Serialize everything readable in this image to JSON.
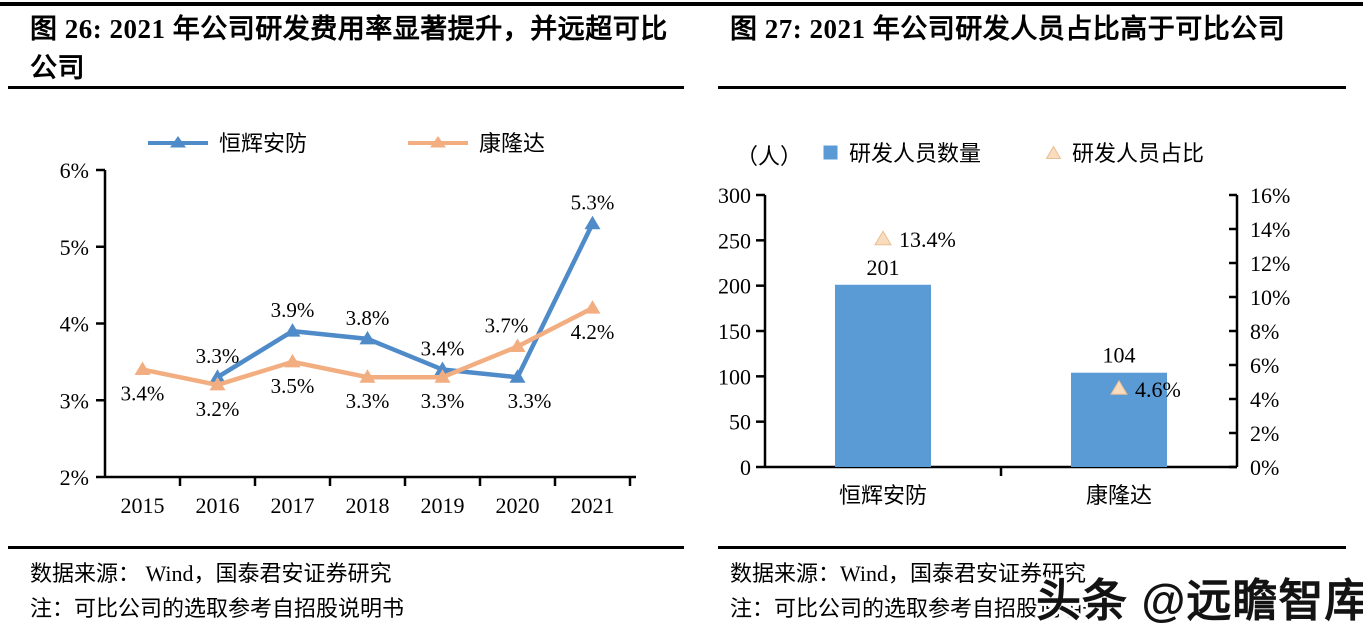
{
  "watermark": {
    "text": "头条 @远瞻智库"
  },
  "panels": {
    "left": {
      "title": "图 26: 2021 年公司研发费用率显著提升，并远超可比公司",
      "source": "数据来源：  Wind，国泰君安证券研究",
      "note": "注：可比公司的选取参考自招股说明书"
    },
    "right": {
      "title": "图 27:  2021 年公司研发人员占比高于可比公司",
      "source": "数据来源：Wind，国泰君安证券研究",
      "note": "注：可比公司的选取参考自招股说明书"
    }
  },
  "chart_data": [
    {
      "type": "line",
      "title": "图 26: 2021 年公司研发费用率显著提升，并远超可比公司",
      "categories": [
        "2015",
        "2016",
        "2017",
        "2018",
        "2019",
        "2020",
        "2021"
      ],
      "series": [
        {
          "name": "恒辉安防",
          "color": "#4F8BC9",
          "values": [
            null,
            3.3,
            3.9,
            3.8,
            3.4,
            3.3,
            5.3
          ],
          "labels": [
            null,
            "3.3%",
            "3.9%",
            "3.8%",
            "3.4%",
            "3.3%",
            "5.3%"
          ],
          "label_side": [
            null,
            "above",
            "above",
            "above",
            "above",
            "below",
            "above"
          ]
        },
        {
          "name": "康隆达",
          "color": "#F2AE81",
          "values": [
            3.4,
            3.2,
            3.5,
            3.3,
            3.3,
            3.7,
            4.2
          ],
          "labels": [
            "3.4%",
            "3.2%",
            "3.5%",
            "3.3%",
            "3.3%",
            "3.7%",
            "4.2%"
          ],
          "label_side": [
            "below",
            "below",
            "below",
            "below",
            "below",
            "above",
            "below"
          ]
        }
      ],
      "ylim": [
        2,
        6
      ],
      "ytick_step": 1,
      "ytick_labels": [
        "2%",
        "3%",
        "4%",
        "5%",
        "6%"
      ],
      "grid": false,
      "legend_position": "top",
      "marker": "triangle"
    },
    {
      "type": "bar",
      "title": "图 27: 2021 年公司研发人员占比高于可比公司",
      "unit_label": "（人）",
      "categories": [
        "恒辉安防",
        "康隆达"
      ],
      "series": [
        {
          "name": "研发人员数量",
          "chart": "bar",
          "axis": "left",
          "color": "#5B9BD5",
          "values": [
            201,
            104
          ],
          "labels": [
            "201",
            "104"
          ]
        },
        {
          "name": "研发人员占比",
          "chart": "scatter-triangle",
          "axis": "right",
          "color": "#F9DCBE",
          "edge": "#E9BE93",
          "values": [
            13.4,
            4.6
          ],
          "labels": [
            "13.4%",
            "4.6%"
          ]
        }
      ],
      "left_axis": {
        "min": 0,
        "max": 300,
        "step": 50,
        "tick_labels": [
          "0",
          "50",
          "100",
          "150",
          "200",
          "250",
          "300"
        ]
      },
      "right_axis": {
        "min": 0,
        "max": 16,
        "step": 2,
        "tick_labels": [
          "0%",
          "2%",
          "4%",
          "6%",
          "8%",
          "10%",
          "12%",
          "14%",
          "16%"
        ]
      },
      "grid": false,
      "legend_position": "top"
    }
  ]
}
